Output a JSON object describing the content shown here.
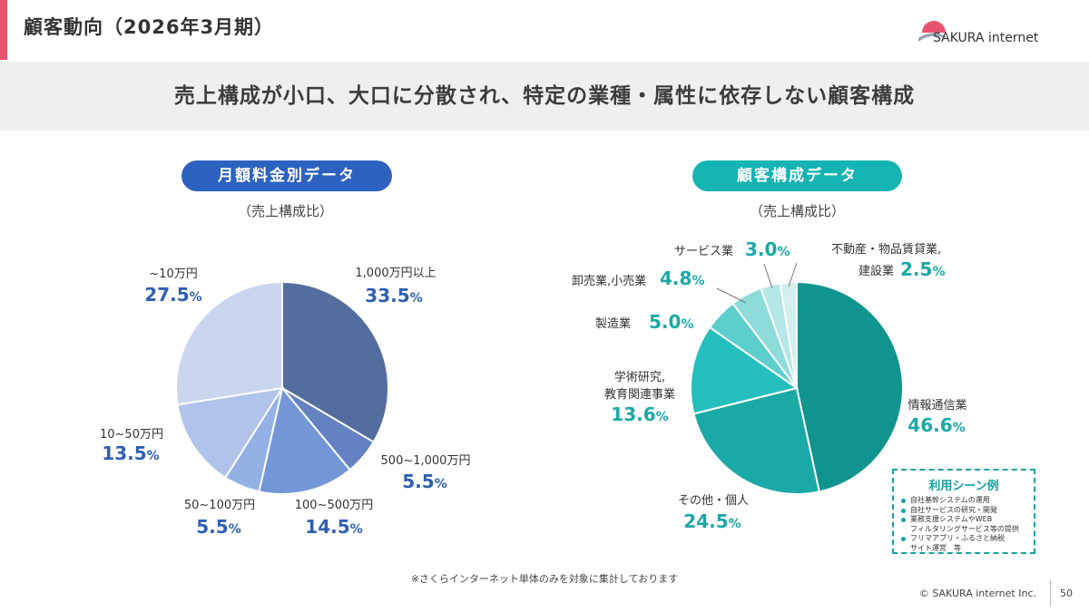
{
  "header": {
    "title": "顧客動向（2026年3月期）",
    "logo_text": "SAKURA internet"
  },
  "banner": {
    "text": "売上構成が小口、大口に分散され、特定の業種・属性に依存しない顧客構成"
  },
  "left_panel": {
    "pill_label": "月額料金別データ",
    "subtitle": "（売上構成比）"
  },
  "right_panel": {
    "pill_label": "顧客構成データ",
    "subtitle": "（売上構成比）"
  },
  "chart_data": [
    {
      "type": "pie",
      "title": "月額料金別データ",
      "subtitle": "（売上構成比）",
      "slices": [
        {
          "label": "1,000万円以上",
          "value": 33.5,
          "value_text": "33.5",
          "color": "#536d9e"
        },
        {
          "label": "500~1,000万円",
          "value": 5.5,
          "value_text": "5.5",
          "color": "#6482c2"
        },
        {
          "label": "100~500万円",
          "value": 14.5,
          "value_text": "14.5",
          "color": "#7397d6"
        },
        {
          "label": "50~100万円",
          "value": 5.5,
          "value_text": "5.5",
          "color": "#94b1e5"
        },
        {
          "label": "10~50万円",
          "value": 13.5,
          "value_text": "13.5",
          "color": "#b0c3ea"
        },
        {
          "label": "~10万円",
          "value": 27.5,
          "value_text": "27.5",
          "color": "#cad5ee"
        }
      ],
      "unit": "%",
      "value_color": "#2f5fb3"
    },
    {
      "type": "pie",
      "title": "顧客構成データ",
      "subtitle": "（売上構成比）",
      "slices": [
        {
          "label": "情報通信業",
          "value": 46.6,
          "value_text": "46.6",
          "color": "#10948f"
        },
        {
          "label": "その他・個人",
          "value": 24.5,
          "value_text": "24.5",
          "color": "#1aa9a6"
        },
        {
          "label": "学術研究,教育関連事業",
          "value": 13.6,
          "value_text": "13.6",
          "color": "#24bfbd"
        },
        {
          "label": "製造業",
          "value": 5.0,
          "value_text": "5.0",
          "color": "#5ccfcc"
        },
        {
          "label": "卸売業,小売業",
          "value": 4.8,
          "value_text": "4.8",
          "color": "#8ddcd9"
        },
        {
          "label": "サービス業",
          "value": 3.0,
          "value_text": "3.0",
          "color": "#b5e7e5"
        },
        {
          "label": "不動産・物品賃貸業,建設業",
          "value": 2.5,
          "value_text": "2.5",
          "color": "#d3efee"
        }
      ],
      "unit": "%",
      "value_color": "#1aa9a6"
    }
  ],
  "labels_text": {
    "left": {
      "l1": "1,000万円以上",
      "l2": "500~1,000万円",
      "l3": "100~500万円",
      "l4": "50~100万円",
      "l5": "10~50万円",
      "l6": "~10万円"
    },
    "right": {
      "r1": "情報通信業",
      "r2": "その他・個人",
      "r3a": "学術研究,",
      "r3b": "教育関連事業",
      "r4": "製造業",
      "r5": "卸売業,小売業",
      "r6": "サービス業",
      "r7a": "不動産・物品賃貸業,",
      "r7b": "建設業"
    }
  },
  "usage_box": {
    "title": "利用シーン例",
    "items": [
      "自社基幹システムの運用",
      "自社サービスの研究・開発",
      "業務支援システムやWEB",
      "フィルタリングサービス等の提供",
      "フリマアプリ・ふるさと納税",
      "サイト運営　等"
    ]
  },
  "footer": {
    "footnote": "※さくらインターネット単体のみを対象に集計しております",
    "copyright": "© SAKURA internet Inc.",
    "page_number": "50"
  }
}
